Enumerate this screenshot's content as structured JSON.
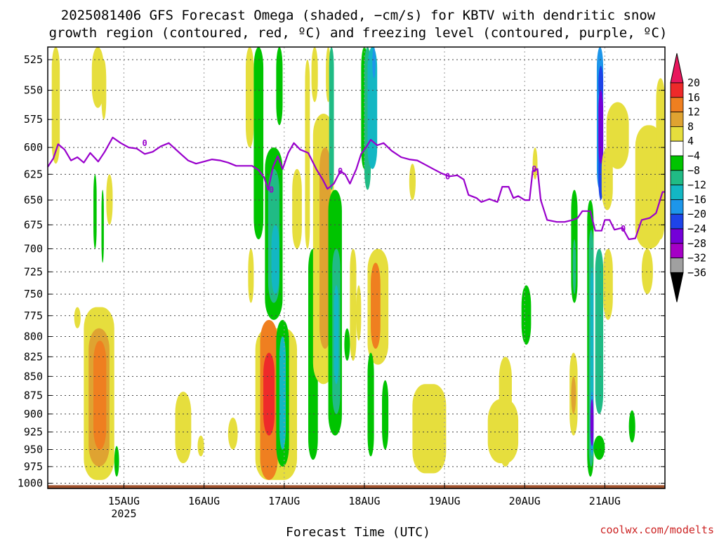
{
  "title": {
    "line1": "2025081406 GFS Forecast Omega (shaded, −cm/s) for KBTV with dendritic snow",
    "line2": "growth region (contoured, red, ºC) and freezing level (contoured, purple, ºC)"
  },
  "credit": "coolwx.com/modelts",
  "colors": {
    "freezing_line": "#9900cc",
    "ground": "#a0522d",
    "grid": "#444444"
  },
  "chart_data": {
    "type": "heatmap",
    "title": "2025081406 GFS Forecast Omega (shaded, −cm/s) for KBTV with dendritic snow growth region (contoured, red, ºC) and freezing level (contoured, purple, ºC)",
    "xlabel": "Forecast Time (UTC)",
    "ylabel": "",
    "x_ticks": [
      {
        "label": "15AUG",
        "sub": "2025",
        "day": 1
      },
      {
        "label": "16AUG",
        "sub": "",
        "day": 2
      },
      {
        "label": "17AUG",
        "sub": "",
        "day": 3
      },
      {
        "label": "18AUG",
        "sub": "",
        "day": 4
      },
      {
        "label": "19AUG",
        "sub": "",
        "day": 5
      },
      {
        "label": "20AUG",
        "sub": "",
        "day": 6
      },
      {
        "label": "21AUG",
        "sub": "",
        "day": 7
      }
    ],
    "xlim_days": [
      0.05,
      7.75
    ],
    "y_ticks": [
      525,
      550,
      575,
      600,
      625,
      650,
      675,
      700,
      725,
      750,
      775,
      800,
      825,
      850,
      875,
      900,
      925,
      950,
      975,
      1000
    ],
    "ylim": [
      515,
      1008
    ],
    "ylog": true,
    "grid": true,
    "colorbar": {
      "labels": [
        "20",
        "16",
        "12",
        "8",
        "4",
        "−4",
        "−8",
        "−12",
        "−16",
        "−20",
        "−24",
        "−28",
        "−32",
        "−36"
      ],
      "colors": [
        "#e8175d",
        "#ee2a2a",
        "#ef7f20",
        "#dfa331",
        "#e6de3d",
        "#ffffff",
        "#00c400",
        "#20bb85",
        "#13b7c3",
        "#1d96ea",
        "#1e44e8",
        "#7400d8",
        "#a500c6",
        "#a0a0a0",
        "#000000"
      ]
    },
    "freezing_level": {
      "label": "0",
      "points": [
        [
          0.05,
          618
        ],
        [
          0.12,
          610
        ],
        [
          0.18,
          597
        ],
        [
          0.26,
          602
        ],
        [
          0.34,
          612
        ],
        [
          0.42,
          609
        ],
        [
          0.5,
          614
        ],
        [
          0.58,
          605
        ],
        [
          0.68,
          613
        ],
        [
          0.76,
          604
        ],
        [
          0.86,
          591
        ],
        [
          0.96,
          596
        ],
        [
          1.06,
          600
        ],
        [
          1.16,
          601
        ],
        [
          1.26,
          606
        ],
        [
          1.36,
          604
        ],
        [
          1.46,
          599
        ],
        [
          1.56,
          596
        ],
        [
          1.68,
          604
        ],
        [
          1.8,
          612
        ],
        [
          1.9,
          615
        ],
        [
          2.0,
          613
        ],
        [
          2.1,
          611
        ],
        [
          2.2,
          612
        ],
        [
          2.3,
          614
        ],
        [
          2.4,
          617
        ],
        [
          2.5,
          617
        ],
        [
          2.6,
          617
        ],
        [
          2.68,
          621
        ],
        [
          2.75,
          628
        ],
        [
          2.8,
          640
        ],
        [
          2.86,
          618
        ],
        [
          2.92,
          608
        ],
        [
          2.98,
          620
        ],
        [
          3.05,
          605
        ],
        [
          3.12,
          596
        ],
        [
          3.2,
          602
        ],
        [
          3.3,
          605
        ],
        [
          3.4,
          620
        ],
        [
          3.48,
          630
        ],
        [
          3.54,
          639
        ],
        [
          3.62,
          634
        ],
        [
          3.7,
          622
        ],
        [
          3.76,
          625
        ],
        [
          3.82,
          634
        ],
        [
          3.9,
          620
        ],
        [
          3.96,
          606
        ],
        [
          4.03,
          599
        ],
        [
          4.08,
          593
        ],
        [
          4.16,
          598
        ],
        [
          4.24,
          596
        ],
        [
          4.34,
          603
        ],
        [
          4.46,
          609
        ],
        [
          4.56,
          611
        ],
        [
          4.66,
          612
        ],
        [
          4.76,
          616
        ],
        [
          4.86,
          620
        ],
        [
          4.96,
          624
        ],
        [
          5.06,
          627
        ],
        [
          5.16,
          626
        ],
        [
          5.24,
          630
        ],
        [
          5.3,
          645
        ],
        [
          5.4,
          648
        ],
        [
          5.46,
          652
        ],
        [
          5.56,
          649
        ],
        [
          5.66,
          652
        ],
        [
          5.72,
          637
        ],
        [
          5.8,
          637
        ],
        [
          5.86,
          648
        ],
        [
          5.92,
          646
        ],
        [
          6.0,
          650
        ],
        [
          6.06,
          650
        ],
        [
          6.1,
          622
        ],
        [
          6.16,
          620
        ],
        [
          6.2,
          650
        ],
        [
          6.28,
          670
        ],
        [
          6.4,
          672
        ],
        [
          6.5,
          672
        ],
        [
          6.6,
          670
        ],
        [
          6.66,
          668
        ],
        [
          6.72,
          661
        ],
        [
          6.82,
          661
        ],
        [
          6.88,
          681
        ],
        [
          6.96,
          681
        ],
        [
          7.0,
          670
        ],
        [
          7.06,
          670
        ],
        [
          7.12,
          680
        ],
        [
          7.22,
          678
        ],
        [
          7.3,
          690
        ],
        [
          7.38,
          689
        ],
        [
          7.46,
          670
        ],
        [
          7.56,
          668
        ],
        [
          7.64,
          663
        ],
        [
          7.72,
          642
        ],
        [
          7.75,
          642
        ]
      ]
    },
    "omega_regions": [
      {
        "color": "#e6de3d",
        "t0": 0.1,
        "t1": 0.2,
        "p0": 515,
        "p1": 615
      },
      {
        "color": "#e6de3d",
        "t0": 0.6,
        "t1": 0.75,
        "p0": 515,
        "p1": 565
      },
      {
        "color": "#00c400",
        "t0": 0.62,
        "t1": 0.66,
        "p0": 625,
        "p1": 700
      },
      {
        "color": "#00c400",
        "t0": 0.72,
        "t1": 0.75,
        "p0": 640,
        "p1": 715
      },
      {
        "color": "#e6de3d",
        "t0": 0.72,
        "t1": 0.78,
        "p0": 525,
        "p1": 575
      },
      {
        "color": "#e6de3d",
        "t0": 0.78,
        "t1": 0.86,
        "p0": 625,
        "p1": 675
      },
      {
        "color": "#e6de3d",
        "t0": 0.38,
        "t1": 0.46,
        "p0": 765,
        "p1": 790
      },
      {
        "color": "#e6de3d",
        "t0": 0.5,
        "t1": 0.88,
        "p0": 765,
        "p1": 995
      },
      {
        "color": "#dfa331",
        "t0": 0.56,
        "t1": 0.82,
        "p0": 790,
        "p1": 975
      },
      {
        "color": "#ef7f20",
        "t0": 0.62,
        "t1": 0.78,
        "p0": 805,
        "p1": 950
      },
      {
        "color": "#00c400",
        "t0": 0.88,
        "t1": 0.94,
        "p0": 945,
        "p1": 990
      },
      {
        "color": "#e6de3d",
        "t0": 1.64,
        "t1": 1.84,
        "p0": 870,
        "p1": 970
      },
      {
        "color": "#e6de3d",
        "t0": 1.92,
        "t1": 2.0,
        "p0": 930,
        "p1": 960
      },
      {
        "color": "#e6de3d",
        "t0": 2.3,
        "t1": 2.42,
        "p0": 905,
        "p1": 950
      },
      {
        "color": "#e6de3d",
        "t0": 2.52,
        "t1": 2.62,
        "p0": 515,
        "p1": 600
      },
      {
        "color": "#e6de3d",
        "t0": 2.55,
        "t1": 2.62,
        "p0": 700,
        "p1": 760
      },
      {
        "color": "#e6de3d",
        "t0": 2.64,
        "t1": 3.16,
        "p0": 790,
        "p1": 995
      },
      {
        "color": "#00c400",
        "t0": 2.62,
        "t1": 2.74,
        "p0": 515,
        "p1": 690
      },
      {
        "color": "#00c400",
        "t0": 2.9,
        "t1": 2.98,
        "p0": 515,
        "p1": 580
      },
      {
        "color": "#ef7f20",
        "t0": 2.7,
        "t1": 2.92,
        "p0": 780,
        "p1": 995
      },
      {
        "color": "#ee2a2a",
        "t0": 2.74,
        "t1": 2.88,
        "p0": 820,
        "p1": 930
      },
      {
        "color": "#00c400",
        "t0": 2.76,
        "t1": 2.98,
        "p0": 600,
        "p1": 780
      },
      {
        "color": "#20bb85",
        "t0": 2.8,
        "t1": 2.94,
        "p0": 620,
        "p1": 760
      },
      {
        "color": "#13b7c3",
        "t0": 2.84,
        "t1": 2.94,
        "p0": 675,
        "p1": 750
      },
      {
        "color": "#00c400",
        "t0": 2.9,
        "t1": 3.06,
        "p0": 780,
        "p1": 975
      },
      {
        "color": "#13b7c3",
        "t0": 2.94,
        "t1": 3.02,
        "p0": 800,
        "p1": 950
      },
      {
        "color": "#e6de3d",
        "t0": 3.1,
        "t1": 3.22,
        "p0": 620,
        "p1": 700
      },
      {
        "color": "#e6de3d",
        "t0": 3.26,
        "t1": 3.32,
        "p0": 525,
        "p1": 700
      },
      {
        "color": "#00c400",
        "t0": 3.3,
        "t1": 3.42,
        "p0": 700,
        "p1": 965
      },
      {
        "color": "#e6de3d",
        "t0": 3.34,
        "t1": 3.42,
        "p0": 515,
        "p1": 560
      },
      {
        "color": "#e6de3d",
        "t0": 3.36,
        "t1": 3.62,
        "p0": 570,
        "p1": 860
      },
      {
        "color": "#dfa331",
        "t0": 3.44,
        "t1": 3.58,
        "p0": 600,
        "p1": 815
      },
      {
        "color": "#e6de3d",
        "t0": 3.52,
        "t1": 3.58,
        "p0": 515,
        "p1": 560
      },
      {
        "color": "#20bb85",
        "t0": 3.56,
        "t1": 3.62,
        "p0": 515,
        "p1": 640
      },
      {
        "color": "#00c400",
        "t0": 3.55,
        "t1": 3.72,
        "p0": 640,
        "p1": 930
      },
      {
        "color": "#20bb85",
        "t0": 3.6,
        "t1": 3.7,
        "p0": 700,
        "p1": 900
      },
      {
        "color": "#13b7c3",
        "t0": 3.62,
        "t1": 3.68,
        "p0": 740,
        "p1": 860
      },
      {
        "color": "#e6de3d",
        "t0": 3.82,
        "t1": 3.9,
        "p0": 700,
        "p1": 830
      },
      {
        "color": "#00c400",
        "t0": 3.75,
        "t1": 3.82,
        "p0": 790,
        "p1": 830
      },
      {
        "color": "#e6de3d",
        "t0": 3.9,
        "t1": 3.96,
        "p0": 740,
        "p1": 805
      },
      {
        "color": "#00c400",
        "t0": 3.96,
        "t1": 4.04,
        "p0": 515,
        "p1": 620
      },
      {
        "color": "#20bb85",
        "t0": 4.0,
        "t1": 4.08,
        "p0": 515,
        "p1": 640
      },
      {
        "color": "#13b7c3",
        "t0": 4.04,
        "t1": 4.16,
        "p0": 515,
        "p1": 620
      },
      {
        "color": "#1d96ea",
        "t0": 4.1,
        "t1": 4.14,
        "p0": 515,
        "p1": 540
      },
      {
        "color": "#e6de3d",
        "t0": 4.04,
        "t1": 4.3,
        "p0": 700,
        "p1": 835
      },
      {
        "color": "#ef7f20",
        "t0": 4.08,
        "t1": 4.2,
        "p0": 715,
        "p1": 815
      },
      {
        "color": "#00c400",
        "t0": 4.04,
        "t1": 4.12,
        "p0": 820,
        "p1": 960
      },
      {
        "color": "#00c400",
        "t0": 4.22,
        "t1": 4.3,
        "p0": 855,
        "p1": 950
      },
      {
        "color": "#e6de3d",
        "t0": 4.56,
        "t1": 4.64,
        "p0": 615,
        "p1": 650
      },
      {
        "color": "#e6de3d",
        "t0": 4.6,
        "t1": 5.02,
        "p0": 860,
        "p1": 985
      },
      {
        "color": "#e6de3d",
        "t0": 5.54,
        "t1": 5.92,
        "p0": 880,
        "p1": 970
      },
      {
        "color": "#e6de3d",
        "t0": 5.68,
        "t1": 5.84,
        "p0": 825,
        "p1": 975
      },
      {
        "color": "#00c400",
        "t0": 5.96,
        "t1": 6.08,
        "p0": 740,
        "p1": 810
      },
      {
        "color": "#e6de3d",
        "t0": 6.1,
        "t1": 6.16,
        "p0": 600,
        "p1": 630
      },
      {
        "color": "#e6de3d",
        "t0": 6.56,
        "t1": 6.66,
        "p0": 820,
        "p1": 930
      },
      {
        "color": "#dfa331",
        "t0": 6.58,
        "t1": 6.64,
        "p0": 850,
        "p1": 900
      },
      {
        "color": "#00c400",
        "t0": 6.58,
        "t1": 6.66,
        "p0": 640,
        "p1": 760
      },
      {
        "color": "#20bb85",
        "t0": 6.6,
        "t1": 6.64,
        "p0": 690,
        "p1": 750
      },
      {
        "color": "#00c400",
        "t0": 6.78,
        "t1": 6.86,
        "p0": 650,
        "p1": 990
      },
      {
        "color": "#20bb85",
        "t0": 6.8,
        "t1": 6.86,
        "p0": 680,
        "p1": 975
      },
      {
        "color": "#13b7c3",
        "t0": 6.82,
        "t1": 6.86,
        "p0": 720,
        "p1": 960
      },
      {
        "color": "#1d96ea",
        "t0": 6.82,
        "t1": 6.86,
        "p0": 870,
        "p1": 955
      },
      {
        "color": "#7400d8",
        "t0": 6.82,
        "t1": 6.86,
        "p0": 880,
        "p1": 945
      },
      {
        "color": "#00c400",
        "t0": 6.86,
        "t1": 7.0,
        "p0": 930,
        "p1": 965
      },
      {
        "color": "#20bb85",
        "t0": 6.88,
        "t1": 6.98,
        "p0": 700,
        "p1": 900
      },
      {
        "color": "#1d96ea",
        "t0": 6.9,
        "t1": 6.98,
        "p0": 515,
        "p1": 640
      },
      {
        "color": "#1e44e8",
        "t0": 6.92,
        "t1": 6.98,
        "p0": 530,
        "p1": 560
      },
      {
        "color": "#1e44e8",
        "t0": 6.92,
        "t1": 6.98,
        "p0": 570,
        "p1": 650
      },
      {
        "color": "#7400d8",
        "t0": 6.92,
        "t1": 6.98,
        "p0": 550,
        "p1": 615
      },
      {
        "color": "#e6de3d",
        "t0": 6.96,
        "t1": 7.1,
        "p0": 600,
        "p1": 660
      },
      {
        "color": "#e6de3d",
        "t0": 7.02,
        "t1": 7.3,
        "p0": 560,
        "p1": 620
      },
      {
        "color": "#e6de3d",
        "t0": 6.98,
        "t1": 7.1,
        "p0": 700,
        "p1": 780
      },
      {
        "color": "#00c400",
        "t0": 7.3,
        "t1": 7.38,
        "p0": 895,
        "p1": 940
      },
      {
        "color": "#e6de3d",
        "t0": 7.38,
        "t1": 7.72,
        "p0": 580,
        "p1": 700
      },
      {
        "color": "#e6de3d",
        "t0": 7.46,
        "t1": 7.6,
        "p0": 700,
        "p1": 750
      },
      {
        "color": "#e6de3d",
        "t0": 7.64,
        "t1": 7.75,
        "p0": 540,
        "p1": 690
      }
    ]
  }
}
